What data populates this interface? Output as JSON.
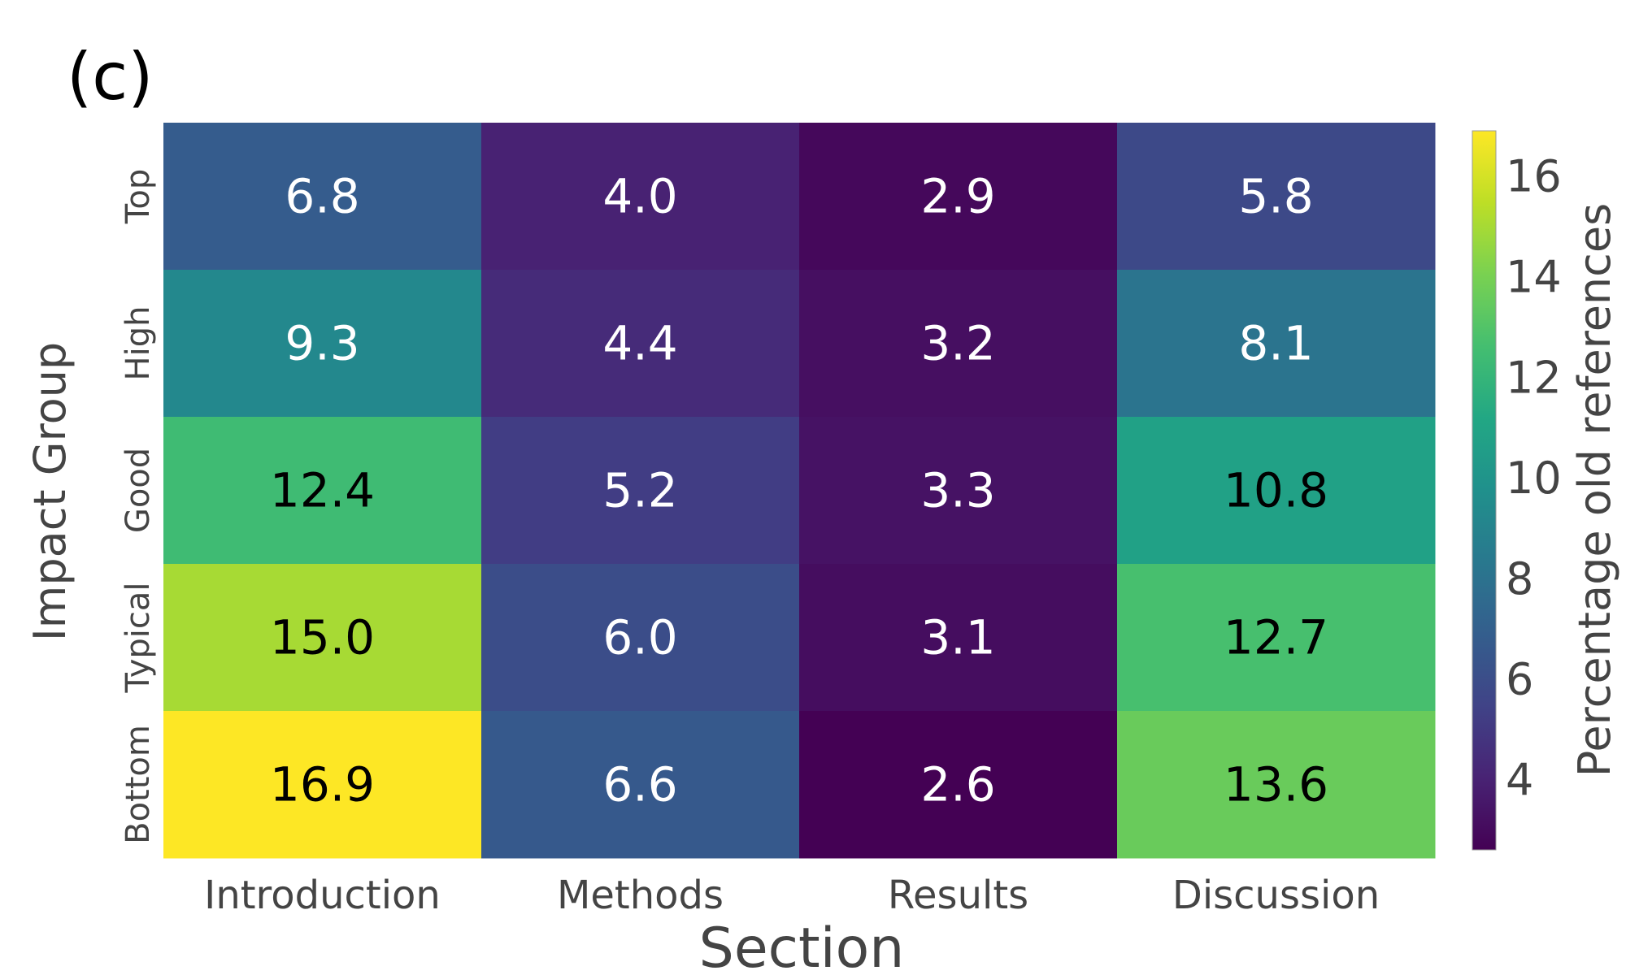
{
  "panel_label": "(c)",
  "chart_data": {
    "type": "heatmap",
    "xlabel": "Section",
    "ylabel": "Impact Group",
    "colorbar_label": "Percentage old references",
    "x_categories": [
      "Introduction",
      "Methods",
      "Results",
      "Discussion"
    ],
    "y_categories": [
      "Top",
      "High",
      "Good",
      "Typical",
      "Bottom"
    ],
    "values": [
      [
        6.8,
        4.0,
        2.9,
        5.8
      ],
      [
        9.3,
        4.4,
        3.2,
        8.1
      ],
      [
        12.4,
        5.2,
        3.3,
        10.8
      ],
      [
        15.0,
        6.0,
        3.1,
        12.7
      ],
      [
        16.9,
        6.6,
        2.6,
        13.6
      ]
    ],
    "colorbar_ticks": [
      4,
      6,
      8,
      10,
      12,
      14,
      16
    ],
    "color_range": [
      2.6,
      16.9
    ],
    "colormap": "viridis",
    "text_colors": {
      "dark": "#000000",
      "light": "#ffffff"
    }
  }
}
